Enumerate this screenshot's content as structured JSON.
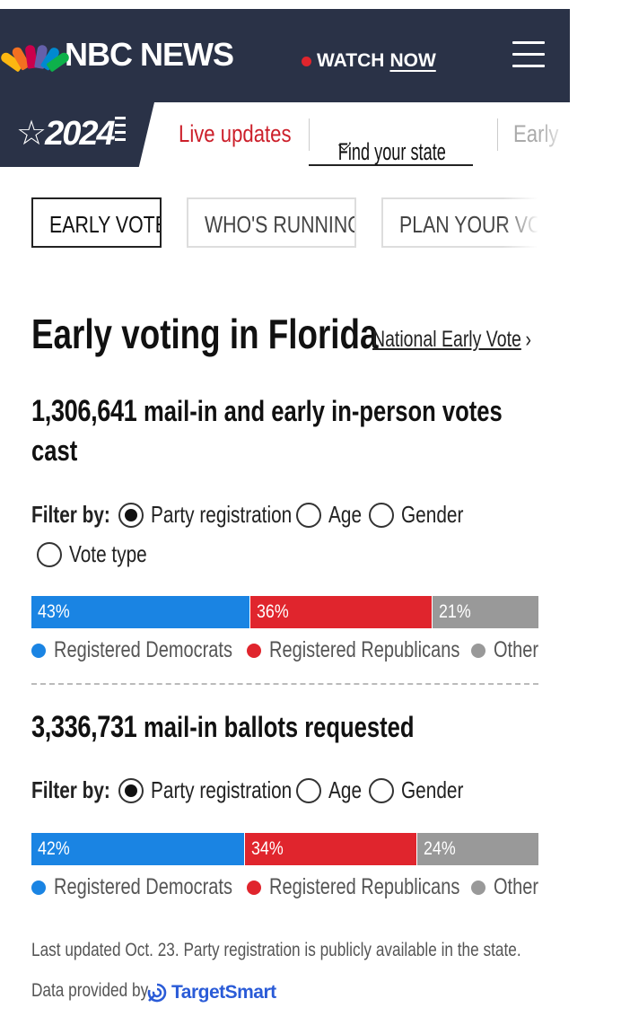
{
  "header": {
    "brand": "NBC NEWS",
    "watch_label": "WATCH",
    "watch_now": "NOW",
    "menu_icon": "hamburger-menu-icon"
  },
  "subnav": {
    "year": "2024",
    "items": [
      {
        "label": "Live updates"
      },
      {
        "label": "Find your state"
      },
      {
        "label": "Early"
      }
    ]
  },
  "tabs": [
    {
      "label": "EARLY VOTE"
    },
    {
      "label": "WHO'S RUNNING"
    },
    {
      "label": "PLAN YOUR VOTE"
    }
  ],
  "page": {
    "title": "Early voting in Florida",
    "national_link": "National Early Vote"
  },
  "section1": {
    "count": "1,306,641",
    "caption": "mail-in and early in-person votes cast",
    "filter_label": "Filter by:",
    "filters": [
      "Party registration",
      "Age",
      "Gender",
      "Vote type"
    ],
    "selected_filter": "Party registration"
  },
  "section2": {
    "count": "3,336,731",
    "caption": "mail-in ballots requested",
    "filter_label": "Filter by:",
    "filters": [
      "Party registration",
      "Age",
      "Gender"
    ],
    "selected_filter": "Party registration"
  },
  "chart_data": [
    {
      "type": "bar",
      "categories": [
        "Registered Democrats",
        "Registered Republicans",
        "Other"
      ],
      "values": [
        43,
        36,
        21
      ],
      "labels": [
        "43%",
        "36%",
        "21%"
      ],
      "colors": [
        "#1a84e3",
        "#e0252d",
        "#999999"
      ]
    },
    {
      "type": "bar",
      "categories": [
        "Registered Democrats",
        "Registered Republicans",
        "Other"
      ],
      "values": [
        42,
        34,
        24
      ],
      "labels": [
        "42%",
        "34%",
        "24%"
      ],
      "colors": [
        "#1a84e3",
        "#e0252d",
        "#999999"
      ]
    }
  ],
  "footer": {
    "note": "Last updated Oct. 23. Party registration is publicly available in the state.",
    "provided_by": "Data provided by",
    "provider": "TargetSmart"
  }
}
